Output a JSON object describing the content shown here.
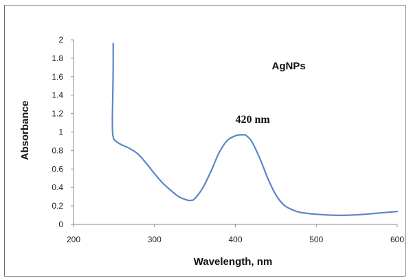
{
  "chart_data": {
    "type": "line",
    "title": "",
    "xlabel": "Wavelength, nm",
    "ylabel": "Absorbance",
    "xlim": [
      200,
      600
    ],
    "ylim": [
      0,
      2
    ],
    "xticks": [
      "200",
      "300",
      "400",
      "500",
      "600"
    ],
    "yticks": [
      "0",
      "0.2",
      "0.4",
      "0.6",
      "0.8",
      "1",
      "1.2",
      "1.4",
      "1.6",
      "1.8",
      "2"
    ],
    "grid": false,
    "line_color": "#5b86c6",
    "annotations": [
      {
        "id": "series-label",
        "text": "AgNPs",
        "x": 445,
        "y": 1.68
      },
      {
        "id": "peak-label",
        "text": "420 nm",
        "x": 400,
        "y": 1.1
      }
    ],
    "series": [
      {
        "x": [
          249,
          249,
          248.5,
          248,
          248.2,
          249,
          250,
          254,
          260,
          270,
          280,
          290,
          300,
          310,
          320,
          330,
          340,
          345,
          350,
          360,
          370,
          380,
          390,
          400,
          405,
          410,
          413,
          420,
          430,
          440,
          450,
          460,
          470,
          480,
          500,
          520,
          540,
          560,
          580,
          600
        ],
        "y": [
          1.96,
          1.7,
          1.4,
          1.15,
          1.0,
          0.95,
          0.92,
          0.89,
          0.86,
          0.82,
          0.76,
          0.66,
          0.55,
          0.45,
          0.37,
          0.3,
          0.265,
          0.26,
          0.28,
          0.4,
          0.58,
          0.78,
          0.91,
          0.96,
          0.97,
          0.97,
          0.965,
          0.9,
          0.72,
          0.5,
          0.32,
          0.21,
          0.16,
          0.13,
          0.11,
          0.1,
          0.1,
          0.11,
          0.125,
          0.14
        ]
      }
    ]
  }
}
